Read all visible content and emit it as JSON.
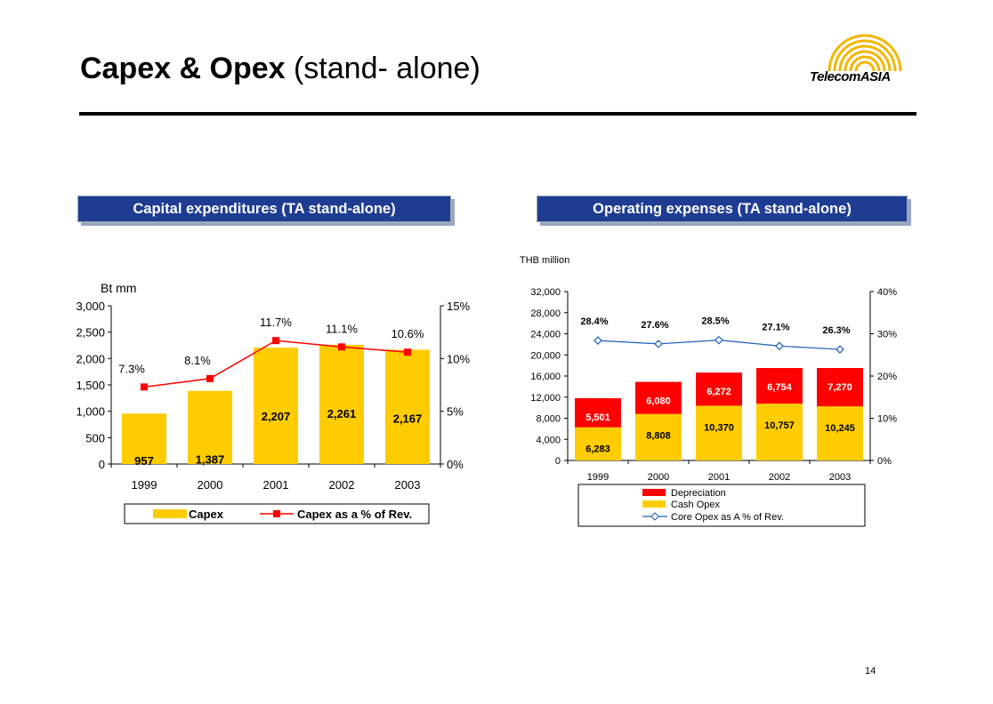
{
  "title": {
    "main": "Capex & Opex",
    "suffix": "(stand- alone)"
  },
  "logo": {
    "text_a": "Telecom",
    "text_b": "ASIA"
  },
  "page_number": "14",
  "chart_data": [
    {
      "type": "bar",
      "header": "Capital expenditures (TA stand-alone)",
      "unit_label": "Bt mm",
      "categories": [
        "1999",
        "2000",
        "2001",
        "2002",
        "2003"
      ],
      "series": [
        {
          "name": "Capex",
          "kind": "bar",
          "axis": "left",
          "color": "#FFCC00",
          "values": [
            957,
            1387,
            2207,
            2261,
            2167
          ],
          "labels": [
            "957",
            "1,387",
            "2,207",
            "2,261",
            "2,167"
          ]
        },
        {
          "name": "Capex as a % of Rev.",
          "kind": "line",
          "axis": "right",
          "color": "#FF0000",
          "values": [
            7.3,
            8.1,
            11.7,
            11.1,
            10.6
          ],
          "labels": [
            "7.3%",
            "8.1%",
            "11.7%",
            "11.1%",
            "10.6%"
          ]
        }
      ],
      "ylim": [
        0,
        3000
      ],
      "yticks": [
        "0",
        "500",
        "1,000",
        "1,500",
        "2,000",
        "2,500",
        "3,000"
      ],
      "y2lim": [
        0,
        15
      ],
      "y2ticks": [
        "0%",
        "5%",
        "10%",
        "15%"
      ],
      "legend": [
        "Capex",
        "Capex as a % of Rev."
      ],
      "legend_position": "bottom"
    },
    {
      "type": "bar",
      "stacked": true,
      "header": "Operating expenses (TA stand-alone)",
      "unit_label": "THB million",
      "categories": [
        "1999",
        "2000",
        "2001",
        "2002",
        "2003"
      ],
      "series": [
        {
          "name": "Cash Opex",
          "kind": "bar",
          "axis": "left",
          "color": "#FFCC00",
          "values": [
            6283,
            8808,
            10370,
            10757,
            10245
          ],
          "labels": [
            "6,283",
            "8,808",
            "10,370",
            "10,757",
            "10,245"
          ]
        },
        {
          "name": "Depreciation",
          "kind": "bar",
          "axis": "left",
          "color": "#FF0000",
          "values": [
            5501,
            6080,
            6272,
            6754,
            7270
          ],
          "labels": [
            "5,501",
            "6,080",
            "6,272",
            "6,754",
            "7,270"
          ]
        },
        {
          "name": "Core Opex as A % of Rev.",
          "kind": "line",
          "axis": "right",
          "color": "#1F5FBF",
          "values": [
            28.4,
            27.6,
            28.5,
            27.1,
            26.3
          ],
          "labels": [
            "28.4%",
            "27.6%",
            "28.5%",
            "27.1%",
            "26.3%"
          ]
        }
      ],
      "ylim": [
        0,
        32000
      ],
      "yticks": [
        "0",
        "4,000",
        "8,000",
        "12,000",
        "16,000",
        "20,000",
        "24,000",
        "28,000",
        "32,000"
      ],
      "y2lim": [
        0,
        40
      ],
      "y2ticks": [
        "0%",
        "10%",
        "20%",
        "30%",
        "40%"
      ],
      "legend": [
        "Depreciation",
        "Cash Opex",
        "Core Opex as A % of Rev."
      ],
      "legend_position": "bottom"
    }
  ]
}
